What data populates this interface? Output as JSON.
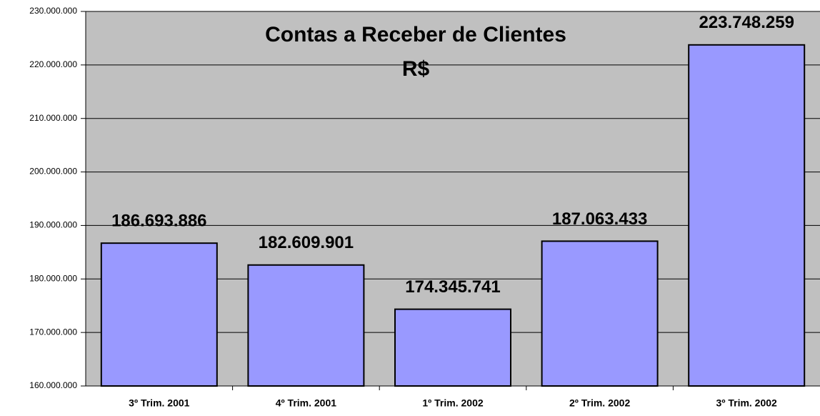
{
  "chart_data": {
    "type": "bar",
    "title": "Contas a Receber de Clientes",
    "subtitle": "R$",
    "categories": [
      "3º Trim. 2001",
      "4º Trim. 2001",
      "1º Trim. 2002",
      "2º Trim. 2002",
      "3º Trim. 2002"
    ],
    "values": [
      186693886,
      182609901,
      174345741,
      187063433,
      223748259
    ],
    "value_labels": [
      "186.693.886",
      "182.609.901",
      "174.345.741",
      "187.063.433",
      "223.748.259"
    ],
    "color": "#9999ff",
    "ylim": [
      160000000,
      230000000
    ],
    "yticks": [
      {
        "value": 160000000,
        "label": "160.000.000"
      },
      {
        "value": 170000000,
        "label": "170.000.000"
      },
      {
        "value": 180000000,
        "label": "180.000.000"
      },
      {
        "value": 190000000,
        "label": "190.000.000"
      },
      {
        "value": 200000000,
        "label": "200.000.000"
      },
      {
        "value": 210000000,
        "label": "210.000.000"
      },
      {
        "value": 220000000,
        "label": "220.000.000"
      },
      {
        "value": 230000000,
        "label": "230.000.000"
      }
    ],
    "grid": true
  }
}
